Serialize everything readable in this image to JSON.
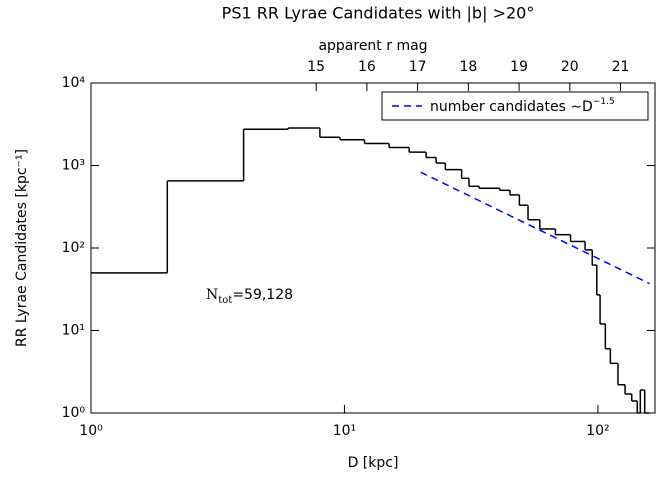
{
  "chart_data": {
    "type": "histogram",
    "title": "PS1 RR Lyrae Candidates with |b| >20°",
    "xlabel": "D [kpc]",
    "ylabel": "RR Lyrae Candidates [kpc⁻¹]",
    "x2label": "apparent r mag",
    "log_x": true,
    "log_y": true,
    "xlim": [
      1,
      168
    ],
    "ylim": [
      1,
      10000
    ],
    "xticks": [
      {
        "value": 1,
        "label": "10⁰"
      },
      {
        "value": 10,
        "label": "10¹"
      },
      {
        "value": 100,
        "label": "10²"
      }
    ],
    "yticks": [
      {
        "value": 1,
        "label": "10⁰"
      },
      {
        "value": 10,
        "label": "10¹"
      },
      {
        "value": 100,
        "label": "10²"
      },
      {
        "value": 1000,
        "label": "10³"
      },
      {
        "value": 10000,
        "label": "10⁴"
      }
    ],
    "x2lim": [
      10.56,
      21.68
    ],
    "x2ticks": [
      15,
      16,
      17,
      18,
      19,
      20,
      21
    ],
    "bins": [
      1,
      2,
      4,
      6,
      8,
      9.6,
      12,
      15,
      18,
      21,
      23,
      25,
      29,
      31,
      34,
      41,
      45,
      49,
      53,
      59,
      68,
      78,
      89,
      95,
      99,
      102,
      107,
      112,
      120,
      128,
      136,
      143,
      147,
      153,
      160
    ],
    "counts": [
      50,
      650,
      2750,
      2850,
      2200,
      2050,
      1850,
      1650,
      1450,
      1250,
      1070,
      890,
      700,
      560,
      530,
      500,
      440,
      330,
      220,
      170,
      145,
      120,
      95,
      62,
      27,
      12,
      6,
      4,
      2.2,
      1.7,
      1.4,
      1,
      1.9,
      1
    ],
    "color": "#000000",
    "series": [
      {
        "name": "number candidates ∼D",
        "name_exponent": "−1.5",
        "color": "#0000ff",
        "x": [
          20,
          160
        ],
        "values": [
          830,
          37
        ]
      }
    ],
    "legend": "upper right",
    "annotation": {
      "base": "N",
      "subscript": "tot",
      "text": "=59,128"
    }
  }
}
